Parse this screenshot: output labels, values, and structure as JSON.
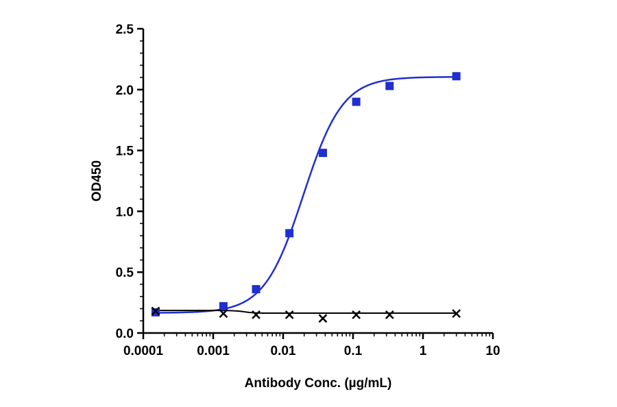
{
  "chart_data": {
    "type": "scatter",
    "title": "",
    "xlabel": "Antibody Conc. (µg/mL)",
    "ylabel": "OD450",
    "x_scale": "log",
    "xlim": [
      0.0001,
      10
    ],
    "ylim": [
      0,
      2.5
    ],
    "x_ticks": [
      0.0001,
      0.001,
      0.01,
      0.1,
      1,
      10
    ],
    "x_tick_labels": [
      "0.0001",
      "0.001",
      "0.01",
      "0.1",
      "1",
      "10"
    ],
    "y_ticks": [
      0,
      0.5,
      1,
      1.5,
      2,
      2.5
    ],
    "y_tick_labels": [
      "0.0",
      "0.5",
      "1.0",
      "1.5",
      "2.0",
      "2.5"
    ],
    "grid": false,
    "legend": "none",
    "series": [
      {
        "color": "#1f2fd0",
        "marker": "square",
        "fit": "four-parameter logistic",
        "x": [
          0.00015,
          0.0014,
          0.0041,
          0.0123,
          0.037,
          0.111,
          0.333,
          3.0
        ],
        "y": [
          0.17,
          0.22,
          0.36,
          0.82,
          1.48,
          1.9,
          2.03,
          2.11
        ]
      },
      {
        "color": "#000000",
        "marker": "x",
        "fit": "flat",
        "x": [
          0.00015,
          0.0014,
          0.0041,
          0.0123,
          0.037,
          0.111,
          0.333,
          3.0
        ],
        "y": [
          0.18,
          0.16,
          0.15,
          0.15,
          0.12,
          0.15,
          0.15,
          0.16
        ]
      }
    ]
  }
}
